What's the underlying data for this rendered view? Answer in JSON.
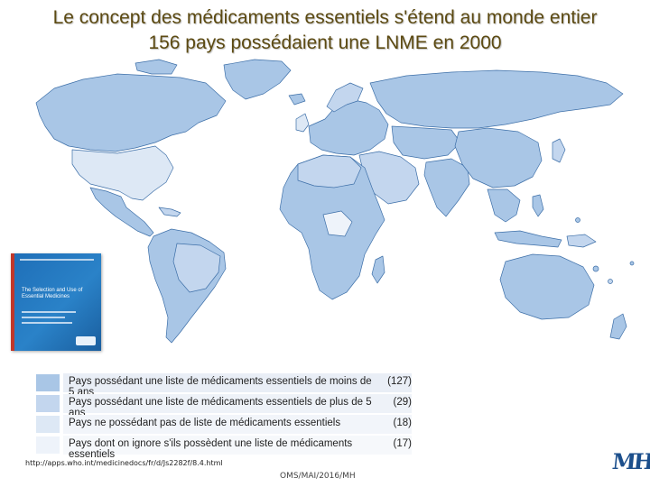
{
  "slide": {
    "title_line1": "Le concept des médicaments essentiels s'étend au monde entier",
    "title_line2": "156 pays possédaient une LNME en 2000"
  },
  "map": {
    "colors": {
      "less_than_5_years": "#a9c6e6",
      "more_than_5_years": "#c3d6ee",
      "no_list": "#dde8f5",
      "unknown": "#eef3fa",
      "border": "#3d6fa8"
    }
  },
  "book": {
    "title_text": "The Selection and Use of Essential Medicines"
  },
  "legend": {
    "items": [
      {
        "label": "Pays possédant une liste de médicaments essentiels de moins de 5 ans",
        "count": "(127)",
        "color": "#a9c6e6"
      },
      {
        "label": "Pays possédant une liste de médicaments essentiels de plus de 5 ans",
        "count": "(29)",
        "color": "#c3d6ee"
      },
      {
        "label": "Pays ne possédant pas de liste de médicaments essentiels",
        "count": "(18)",
        "color": "#dde8f5"
      },
      {
        "label": "Pays dont on ignore s'ils possèdent une liste de médicaments essentiels",
        "count": "(17)",
        "color": "#eef3fa"
      }
    ]
  },
  "footer": {
    "url": "http://apps.who.int/medicinedocs/fr/d/Js2282f/8.4.html",
    "credit": "OMS/MAI/2016/MH",
    "logo_text": "MH"
  }
}
